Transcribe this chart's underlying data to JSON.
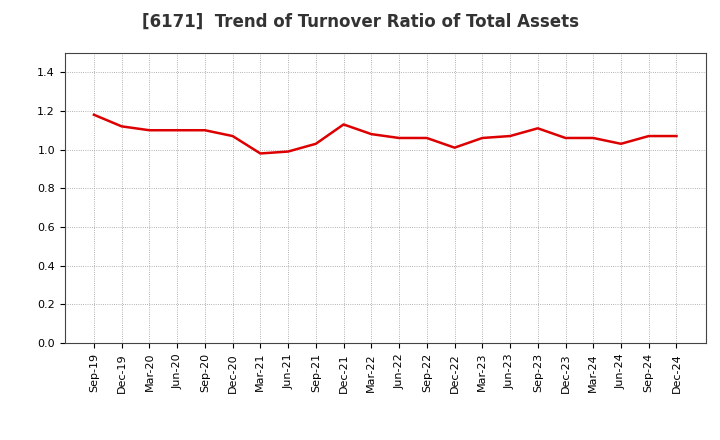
{
  "title": "[6171]  Trend of Turnover Ratio of Total Assets",
  "x_labels": [
    "Sep-19",
    "Dec-19",
    "Mar-20",
    "Jun-20",
    "Sep-20",
    "Dec-20",
    "Mar-21",
    "Jun-21",
    "Sep-21",
    "Dec-21",
    "Mar-22",
    "Jun-22",
    "Sep-22",
    "Dec-22",
    "Mar-23",
    "Jun-23",
    "Sep-23",
    "Dec-23",
    "Mar-24",
    "Jun-24",
    "Sep-24",
    "Dec-24"
  ],
  "values": [
    1.18,
    1.12,
    1.1,
    1.1,
    1.1,
    1.07,
    0.98,
    0.99,
    1.03,
    1.13,
    1.08,
    1.06,
    1.06,
    1.01,
    1.06,
    1.07,
    1.11,
    1.06,
    1.06,
    1.03,
    1.07,
    1.07
  ],
  "line_color": "#dd0000",
  "line_width": 1.8,
  "ylim": [
    0.0,
    1.5
  ],
  "yticks": [
    0.0,
    0.2,
    0.4,
    0.6,
    0.8,
    1.0,
    1.2,
    1.4
  ],
  "background_color": "#ffffff",
  "grid_color": "#999999",
  "title_fontsize": 12,
  "tick_fontsize": 8,
  "title_color": "#333333"
}
